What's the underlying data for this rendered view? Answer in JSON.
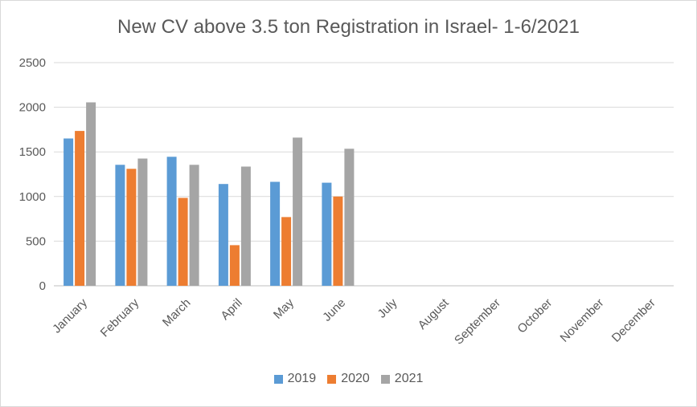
{
  "chart_data": {
    "type": "bar",
    "title": "New CV above 3.5 ton Registration in Israel- 1-6/2021",
    "xlabel": "",
    "ylabel": "",
    "ylim": [
      0,
      2500
    ],
    "yticks": [
      "2500",
      "2000",
      "1500",
      "1000",
      "500",
      "0"
    ],
    "grid": true,
    "legend_position": "bottom",
    "categories": [
      "January",
      "February",
      "March",
      "April",
      "May",
      "June",
      "July",
      "August",
      "September",
      "October",
      "November",
      "December"
    ],
    "series": [
      {
        "name": "2019",
        "color": "#5b9bd5",
        "values": [
          1650,
          1355,
          1445,
          1140,
          1165,
          1155,
          null,
          null,
          null,
          null,
          null,
          null
        ]
      },
      {
        "name": "2020",
        "color": "#ed7d31",
        "values": [
          1735,
          1310,
          985,
          455,
          770,
          1000,
          null,
          null,
          null,
          null,
          null,
          null
        ]
      },
      {
        "name": "2021",
        "color": "#a5a5a5",
        "values": [
          2055,
          1425,
          1355,
          1335,
          1660,
          1535,
          null,
          null,
          null,
          null,
          null,
          null
        ]
      }
    ]
  }
}
